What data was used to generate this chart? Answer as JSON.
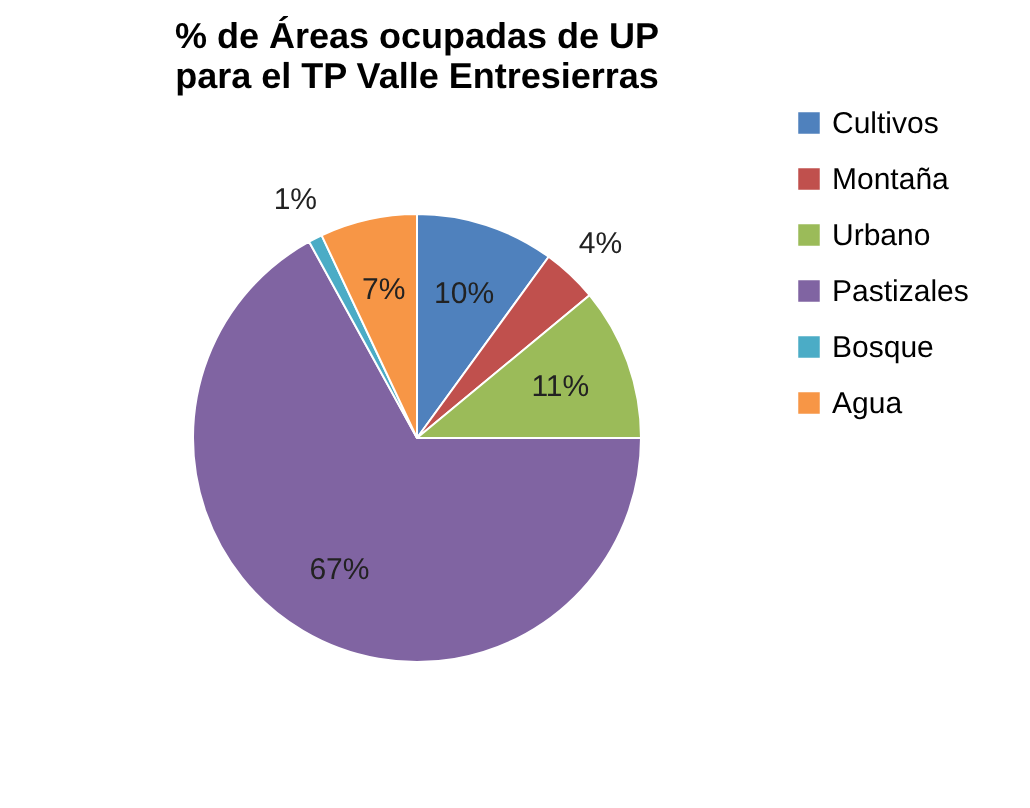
{
  "chart_data": {
    "type": "pie",
    "title": "% de Áreas ocupadas de UP\npara el TP Valle Entresierras",
    "categories": [
      "Cultivos",
      "Montaña",
      "Urbano",
      "Pastizales",
      "Bosque",
      "Agua"
    ],
    "values": [
      10,
      4,
      11,
      67,
      1,
      7
    ],
    "colors": [
      "#4f81bd",
      "#c0504d",
      "#9bbb59",
      "#8064a2",
      "#4bacc6",
      "#f79646"
    ],
    "value_labels": [
      "10%",
      "4%",
      "11%",
      "67%",
      "1%",
      "7%"
    ],
    "legend": "right"
  }
}
